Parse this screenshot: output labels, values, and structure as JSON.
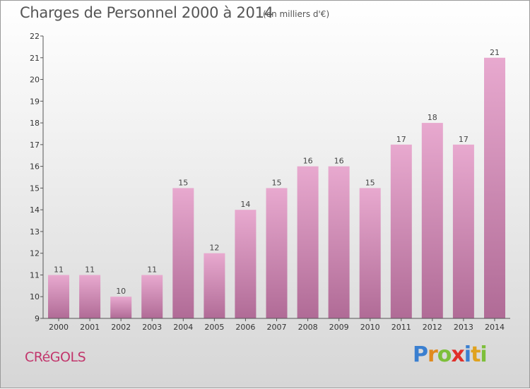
{
  "header": {
    "title": "Charges de Personnel 2000 à 2014",
    "subtitle": "(en milliers d'€)"
  },
  "footer": {
    "commune": "CRéGOLS",
    "logo_text": "Proxiti"
  },
  "colors": {
    "bar_top": "#e8a9cf",
    "bar_bottom": "#b06b96",
    "commune_text": "#c2366c",
    "logo_P": "#3a7fd0",
    "logo_r": "#e08a1e",
    "logo_o": "#7dbf3a",
    "logo_x": "#e0302a",
    "logo_i": "#3a7fd0",
    "logo_t": "#e0a21e",
    "logo_i2": "#7dbf3a"
  },
  "chart_data": {
    "type": "bar",
    "title": "Charges de Personnel 2000 à 2014",
    "subtitle": "(en milliers d'€)",
    "categories": [
      "2000",
      "2001",
      "2002",
      "2003",
      "2004",
      "2005",
      "2006",
      "2007",
      "2008",
      "2009",
      "2010",
      "2011",
      "2012",
      "2013",
      "2014"
    ],
    "values": [
      11,
      11,
      10,
      11,
      15,
      12,
      14,
      15,
      16,
      16,
      15,
      17,
      18,
      17,
      21
    ],
    "data_labels": [
      "11",
      "11",
      "10",
      "11",
      "15",
      "12",
      "14",
      "15",
      "16",
      "16",
      "15",
      "17",
      "18",
      "17",
      "21"
    ],
    "ylim": [
      9,
      22
    ],
    "yticks": [
      9,
      10,
      11,
      12,
      13,
      14,
      15,
      16,
      17,
      18,
      19,
      20,
      21,
      22
    ],
    "xlabel": "",
    "ylabel": "",
    "grid": false,
    "legend": "none"
  }
}
